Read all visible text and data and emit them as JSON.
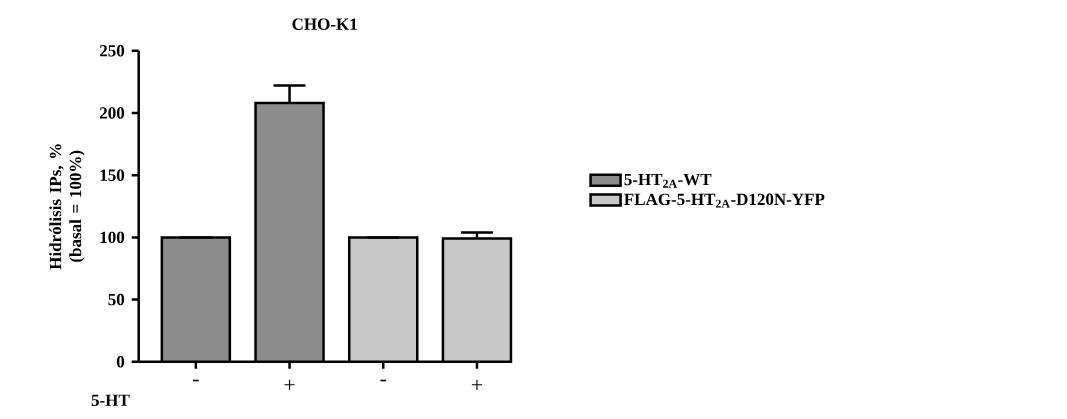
{
  "chart_data": {
    "type": "bar",
    "title": "CHO-K1",
    "ylabel": "Hidrólisis IPs, % (basal = 100%)",
    "xlabel": "5-HT",
    "categories": [
      "-",
      "+",
      "-",
      "+"
    ],
    "series": [
      {
        "name": "5-HT$_{2A}$-WT",
        "color": "#8c8c8c",
        "values": [
          100,
          208,
          null,
          null
        ],
        "errors": [
          null,
          14,
          null,
          null
        ]
      },
      {
        "name": "FLAG-5-HT$_{2A}$-D120N-YFP",
        "color": "#c8c8c8",
        "values": [
          null,
          null,
          100,
          99
        ],
        "errors": [
          null,
          null,
          null,
          5
        ]
      }
    ],
    "ylim": [
      0,
      250
    ],
    "yticks": [
      0,
      50,
      100,
      150,
      200,
      250
    ],
    "legend": "right"
  }
}
